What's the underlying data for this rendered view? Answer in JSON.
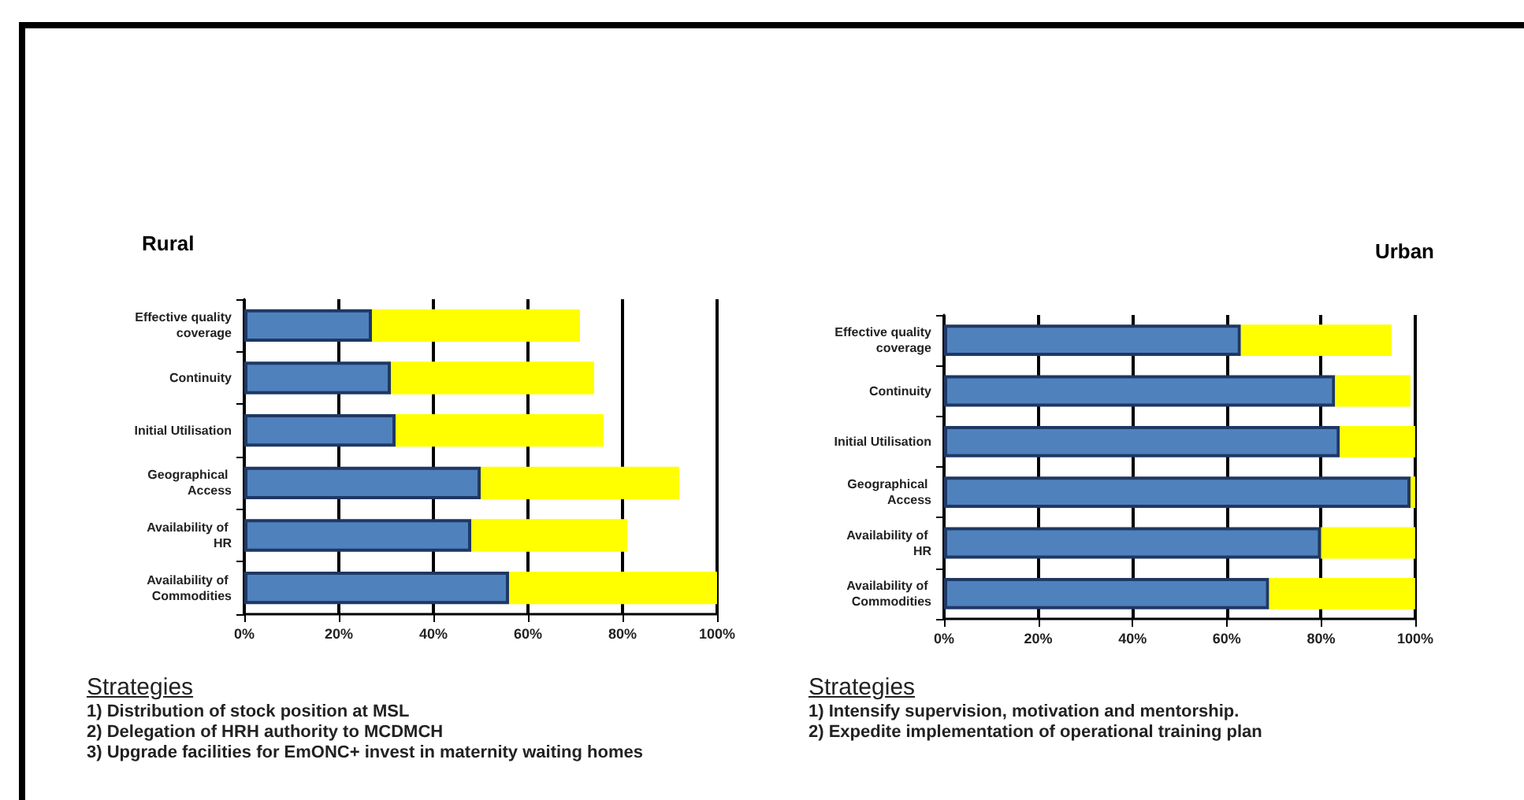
{
  "chart_data": [
    {
      "type": "bar",
      "title": "Rural",
      "orientation": "horizontal",
      "stacked": true,
      "grid": "x",
      "categories": [
        "Effective quality coverage",
        "Continuity",
        "Initial Utilisation",
        "Geographical Access",
        "Availability of HR",
        "Availability of Commodities"
      ],
      "series": [
        {
          "color": "#4f81bd",
          "values": [
            27,
            31,
            32,
            50,
            48,
            56
          ]
        },
        {
          "color": "#ffff00",
          "values": [
            44,
            43,
            44,
            42,
            33,
            44
          ]
        }
      ],
      "xlim": [
        0,
        100
      ],
      "xticks": [
        {
          "value": 0,
          "label": "0%"
        },
        {
          "value": 20,
          "label": "20%"
        },
        {
          "value": 40,
          "label": "40%"
        },
        {
          "value": 60,
          "label": "60%"
        },
        {
          "value": 80,
          "label": "80%"
        },
        {
          "value": 100,
          "label": "100%"
        }
      ],
      "annotations": [
        "Strategies",
        "1) Distribution of stock position at MSL",
        "2) Delegation of HRH authority to MCDMCH",
        "3) Upgrade facilities for EmONC+ invest in maternity waiting homes"
      ]
    },
    {
      "type": "bar",
      "title": "Urban",
      "orientation": "horizontal",
      "stacked": true,
      "grid": "x",
      "categories": [
        "Effective quality coverage",
        "Continuity",
        "Initial Utilisation",
        "Geographical Access",
        "Availability of HR",
        "Availability of Commodities"
      ],
      "series": [
        {
          "color": "#4f81bd",
          "values": [
            63,
            83,
            84,
            99,
            80,
            69
          ]
        },
        {
          "color": "#ffff00",
          "values": [
            32,
            16,
            16,
            1,
            20,
            31
          ]
        }
      ],
      "xlim": [
        0,
        100
      ],
      "xticks": [
        {
          "value": 0,
          "label": "0%"
        },
        {
          "value": 20,
          "label": "20%"
        },
        {
          "value": 40,
          "label": "40%"
        },
        {
          "value": 60,
          "label": "60%"
        },
        {
          "value": 80,
          "label": "80%"
        },
        {
          "value": 100,
          "label": "100%"
        }
      ],
      "annotations": [
        "Strategies",
        "1) Intensify supervision, motivation and mentorship.",
        "2) Expedite implementation of operational training plan"
      ]
    }
  ]
}
